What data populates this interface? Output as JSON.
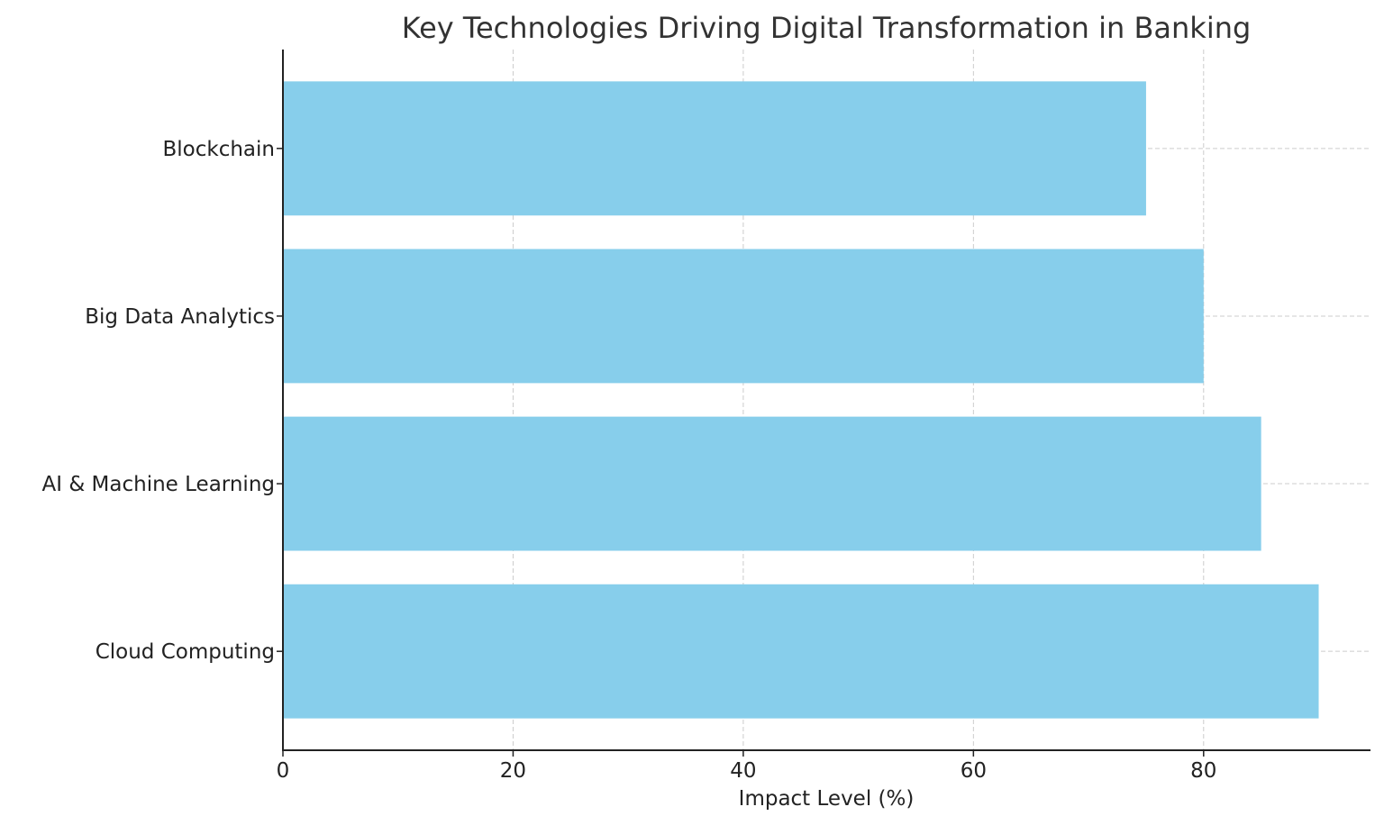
{
  "chart_data": {
    "type": "bar",
    "orientation": "horizontal",
    "title": "Key Technologies Driving Digital Transformation in Banking",
    "xlabel": "Impact Level (%)",
    "ylabel": "",
    "categories": [
      "Cloud Computing",
      "AI & Machine Learning",
      "Big Data Analytics",
      "Blockchain"
    ],
    "values": [
      90,
      85,
      80,
      75
    ],
    "xlim": [
      0,
      94.5
    ],
    "xticks": [
      0,
      20,
      40,
      60,
      80
    ],
    "grid": true,
    "bar_color": "#87CEEB"
  }
}
